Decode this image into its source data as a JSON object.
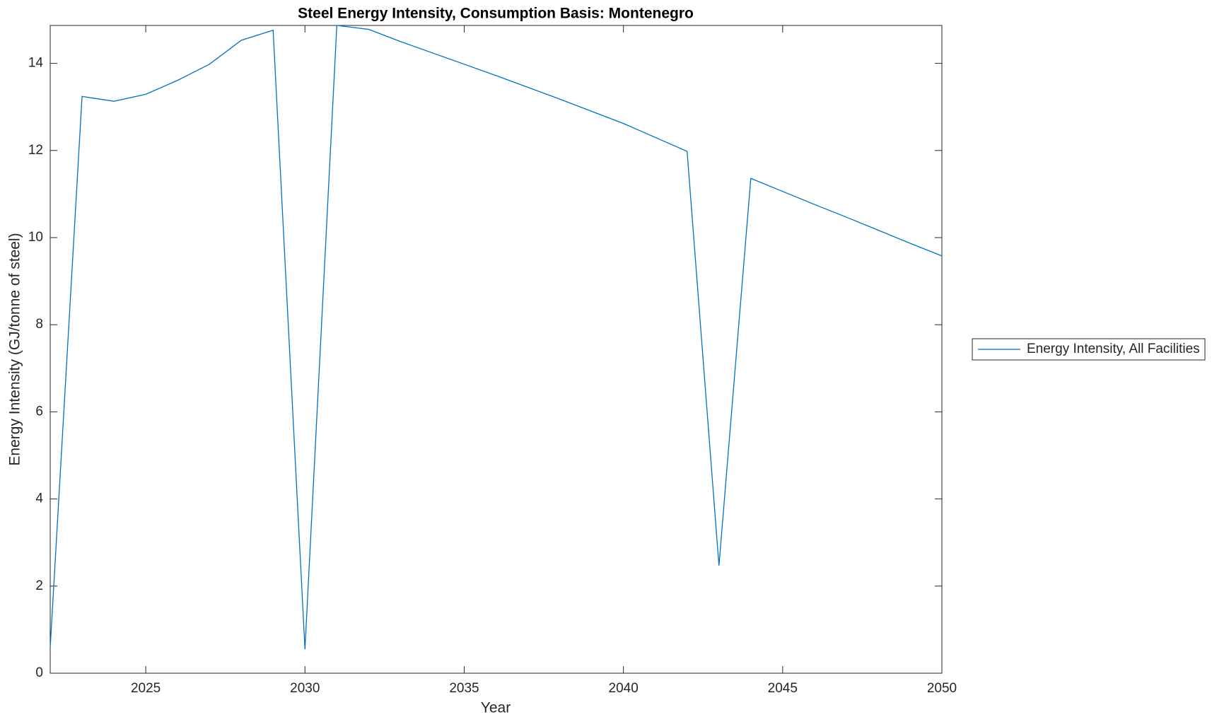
{
  "chart_data": {
    "type": "line",
    "title": "Steel Energy Intensity, Consumption Basis: Montenegro",
    "x_label": "Year",
    "y_label": "Energy Intensity (GJ/tonne of steel)",
    "x": [
      2022,
      2023,
      2024,
      2025,
      2026,
      2027,
      2028,
      2029,
      2030,
      2031,
      2032,
      2033,
      2034,
      2035,
      2036,
      2037,
      2038,
      2039,
      2040,
      2041,
      2042,
      2043,
      2044,
      2045,
      2046,
      2047,
      2048,
      2049,
      2050
    ],
    "series": [
      {
        "name": "Energy Intensity, All Facilities",
        "color": "#0072bd",
        "values": [
          0.59,
          13.24,
          13.13,
          13.29,
          13.61,
          13.98,
          14.53,
          14.76,
          0.55,
          14.87,
          14.78,
          14.5,
          14.24,
          13.98,
          13.72,
          13.45,
          13.18,
          12.9,
          12.62,
          12.3,
          11.98,
          2.47,
          11.36,
          11.06,
          10.76,
          10.47,
          10.17,
          9.87,
          9.58
        ]
      }
    ],
    "xlim": [
      2022,
      2050
    ],
    "xticks": [
      2025,
      2030,
      2035,
      2040,
      2045,
      2050
    ],
    "ylim": [
      0,
      14.87
    ],
    "yticks": [
      0,
      2,
      4,
      6,
      8,
      10,
      12,
      14
    ],
    "grid": false,
    "legend": "east outside"
  }
}
